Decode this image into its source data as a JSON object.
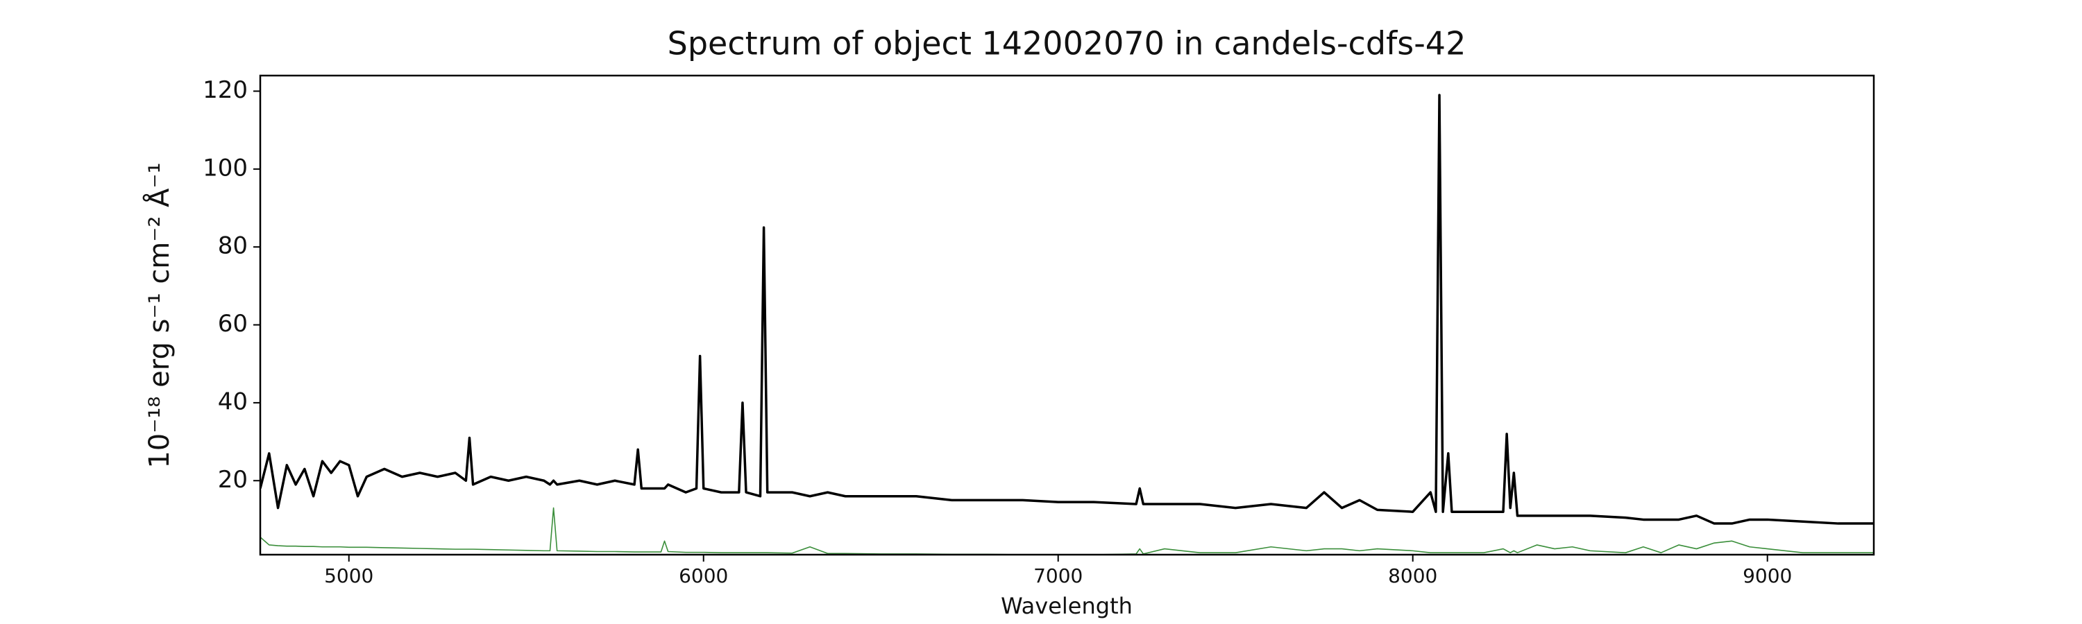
{
  "chart_data": {
    "type": "line",
    "title": "Spectrum of object 142002070 in candels-cdfs-42",
    "xlabel": "Wavelength",
    "ylabel": "10⁻¹⁸ erg s⁻¹ cm⁻² Å⁻¹",
    "x": [
      4750,
      4775,
      4800,
      4825,
      4850,
      4875,
      4900,
      4925,
      4950,
      4975,
      5000,
      5025,
      5050,
      5100,
      5150,
      5200,
      5250,
      5300,
      5330,
      5340,
      5350,
      5400,
      5450,
      5500,
      5550,
      5567,
      5577,
      5587,
      5650,
      5700,
      5750,
      5805,
      5815,
      5825,
      5880,
      5890,
      5900,
      5950,
      5980,
      5990,
      6000,
      6050,
      6100,
      6110,
      6120,
      6160,
      6170,
      6180,
      6250,
      6300,
      6350,
      6400,
      6500,
      6600,
      6700,
      6800,
      6900,
      7000,
      7100,
      7220,
      7230,
      7240,
      7300,
      7400,
      7500,
      7600,
      7700,
      7750,
      7800,
      7850,
      7900,
      8000,
      8050,
      8065,
      8075,
      8085,
      8100,
      8110,
      8200,
      8255,
      8265,
      8275,
      8285,
      8295,
      8350,
      8400,
      8450,
      8500,
      8600,
      8650,
      8700,
      8750,
      8800,
      8850,
      8900,
      8950,
      9000,
      9100,
      9200,
      9300
    ],
    "series": [
      {
        "color": "#000000",
        "values": [
          18,
          27,
          13,
          24,
          19,
          23,
          16,
          25,
          22,
          25,
          24,
          16,
          21,
          23,
          21,
          22,
          21,
          22,
          20,
          31,
          19,
          21,
          20,
          21,
          20,
          19,
          20,
          19,
          20,
          19,
          20,
          19,
          28,
          18,
          18,
          18,
          19,
          17,
          18,
          52,
          18,
          17,
          17,
          40,
          17,
          16,
          85,
          17,
          17,
          16,
          17,
          16,
          16,
          16,
          15,
          15,
          15,
          14.5,
          14.5,
          14,
          18,
          14,
          14,
          14,
          13,
          14,
          13,
          17,
          13,
          15,
          12.5,
          12,
          17,
          12,
          119,
          12,
          27,
          12,
          12,
          12,
          32,
          13,
          22,
          11,
          11,
          11,
          11,
          11,
          10.5,
          10,
          10,
          10,
          11,
          9,
          9,
          10,
          10,
          9.5,
          9,
          9
        ]
      },
      {
        "color": "#3a8e3a",
        "values": [
          5.5,
          3.5,
          3.3,
          3.2,
          3.2,
          3.1,
          3.1,
          3.0,
          3.0,
          3.0,
          2.9,
          2.9,
          2.9,
          2.8,
          2.7,
          2.6,
          2.5,
          2.4,
          2.4,
          2.4,
          2.4,
          2.3,
          2.2,
          2.1,
          2.0,
          2.0,
          13,
          2.0,
          1.9,
          1.8,
          1.8,
          1.7,
          1.7,
          1.7,
          1.7,
          4.5,
          1.8,
          1.6,
          1.6,
          1.6,
          1.6,
          1.5,
          1.5,
          1.5,
          1.5,
          1.5,
          1.5,
          1.5,
          1.4,
          3.0,
          1.3,
          1.3,
          1.2,
          1.2,
          1.1,
          1.1,
          1.0,
          1.0,
          1.0,
          1.2,
          2.5,
          1.2,
          2.5,
          1.5,
          1.5,
          3.0,
          2.0,
          2.5,
          2.5,
          2.0,
          2.5,
          2.0,
          1.5,
          1.5,
          1.5,
          1.5,
          1.5,
          1.5,
          1.5,
          2.5,
          2.0,
          1.5,
          2.0,
          1.5,
          3.5,
          2.5,
          3.0,
          2.0,
          1.5,
          3.0,
          1.5,
          3.5,
          2.5,
          4.0,
          4.5,
          3.0,
          2.5,
          1.5,
          1.5,
          1.5
        ]
      }
    ],
    "xlim": [
      4750,
      9300
    ],
    "ylim": [
      1,
      124
    ],
    "xticks": [
      5000,
      6000,
      7000,
      8000,
      9000
    ],
    "yticks": [
      20,
      40,
      60,
      80,
      100,
      120
    ],
    "grid": false
  }
}
